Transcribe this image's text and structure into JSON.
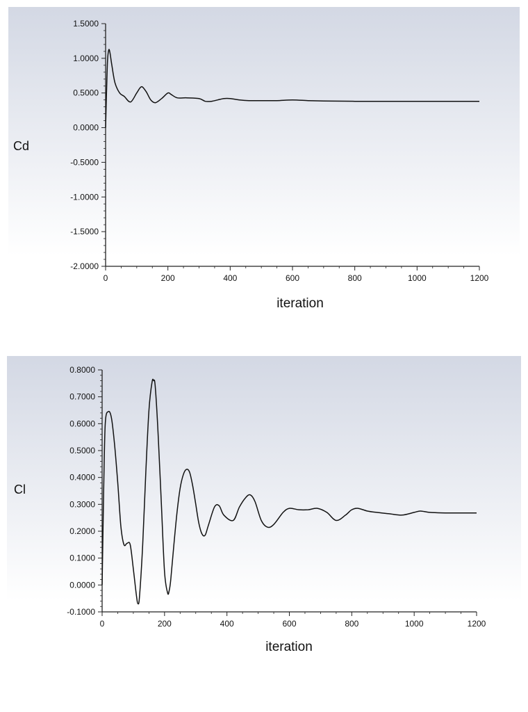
{
  "chart_data": [
    {
      "type": "line",
      "title": "",
      "xlabel": "iteration",
      "ylabel": "Cd",
      "xlim": [
        0,
        1200
      ],
      "ylim": [
        -2.0,
        1.5
      ],
      "x_ticks": [
        "0",
        "200",
        "400",
        "600",
        "800",
        "1000",
        "1200"
      ],
      "y_ticks": [
        "1.5000",
        "1.0000",
        "0.5000",
        "0.0000",
        "-0.5000",
        "-1.0000",
        "-1.5000",
        "-2.0000"
      ],
      "grid": false,
      "legend": "none",
      "series": [
        {
          "x": [
            0,
            3,
            6,
            10,
            14,
            20,
            30,
            45,
            60,
            80,
            100,
            115,
            130,
            145,
            160,
            180,
            200,
            210,
            230,
            260,
            300,
            320,
            340,
            360,
            380,
            400,
            430,
            460,
            500,
            550,
            600,
            650,
            700,
            800,
            900,
            1000,
            1100,
            1200
          ],
          "y": [
            0.0,
            0.5,
            0.95,
            1.12,
            1.08,
            0.9,
            0.65,
            0.5,
            0.45,
            0.37,
            0.5,
            0.59,
            0.52,
            0.4,
            0.36,
            0.42,
            0.5,
            0.48,
            0.43,
            0.43,
            0.42,
            0.38,
            0.38,
            0.4,
            0.42,
            0.42,
            0.4,
            0.39,
            0.39,
            0.39,
            0.4,
            0.39,
            0.385,
            0.38,
            0.38,
            0.38,
            0.38,
            0.38
          ]
        }
      ]
    },
    {
      "type": "line",
      "title": "",
      "xlabel": "iteration",
      "ylabel": "Cl",
      "xlim": [
        0,
        1200
      ],
      "ylim": [
        -0.1,
        0.8
      ],
      "x_ticks": [
        "0",
        "200",
        "400",
        "600",
        "800",
        "1000",
        "1200"
      ],
      "y_ticks": [
        "0.8000",
        "0.7000",
        "0.6000",
        "0.5000",
        "0.4000",
        "0.3000",
        "0.2000",
        "0.1000",
        "0.0000",
        "-0.1000"
      ],
      "grid": false,
      "legend": "none",
      "series": [
        {
          "x": [
            0,
            5,
            10,
            20,
            30,
            40,
            50,
            60,
            70,
            80,
            90,
            100,
            110,
            115,
            120,
            130,
            140,
            150,
            160,
            165,
            170,
            180,
            190,
            200,
            210,
            215,
            220,
            230,
            240,
            250,
            260,
            270,
            280,
            290,
            300,
            310,
            320,
            330,
            340,
            360,
            375,
            390,
            420,
            440,
            460,
            475,
            490,
            510,
            530,
            550,
            580,
            600,
            630,
            660,
            690,
            720,
            750,
            780,
            800,
            820,
            850,
            880,
            920,
            960,
            1000,
            1020,
            1050,
            1100,
            1150,
            1200
          ],
          "y": [
            0.0,
            0.35,
            0.6,
            0.645,
            0.62,
            0.52,
            0.38,
            0.22,
            0.15,
            0.155,
            0.15,
            0.06,
            -0.04,
            -0.07,
            -0.04,
            0.15,
            0.42,
            0.65,
            0.755,
            0.76,
            0.74,
            0.55,
            0.3,
            0.05,
            -0.03,
            -0.02,
            0.02,
            0.15,
            0.27,
            0.36,
            0.41,
            0.43,
            0.42,
            0.37,
            0.3,
            0.23,
            0.19,
            0.185,
            0.22,
            0.29,
            0.295,
            0.26,
            0.24,
            0.29,
            0.325,
            0.335,
            0.31,
            0.24,
            0.215,
            0.225,
            0.27,
            0.285,
            0.28,
            0.28,
            0.285,
            0.27,
            0.24,
            0.26,
            0.28,
            0.285,
            0.275,
            0.27,
            0.265,
            0.26,
            0.27,
            0.275,
            0.27,
            0.268,
            0.268,
            0.268
          ]
        }
      ]
    }
  ]
}
